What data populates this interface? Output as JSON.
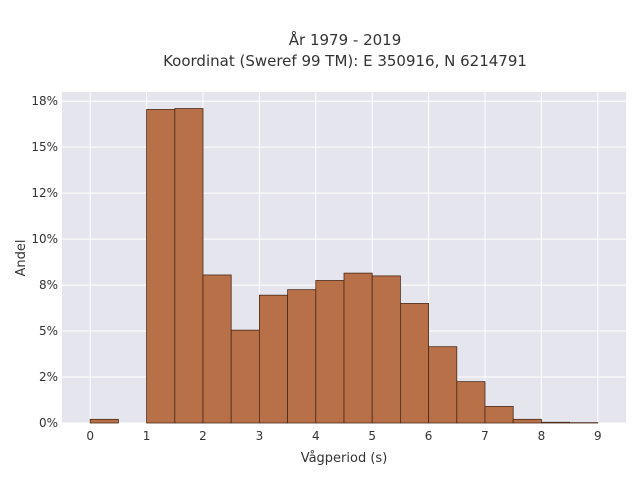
{
  "chart_data": {
    "type": "bar",
    "subtype": "histogram",
    "title_line1": "År 1979 - 2019",
    "title_line2": "Koordinat (Sweref 99 TM): E 350916, N 6214791",
    "xlabel": "Vågperiod (s)",
    "ylabel": "Andel",
    "xlim": [
      -0.5,
      9.5
    ],
    "ylim": [
      0,
      0.18
    ],
    "x_ticks": [
      0,
      1,
      2,
      3,
      4,
      5,
      6,
      7,
      8,
      9
    ],
    "x_tick_labels": [
      "0",
      "1",
      "2",
      "3",
      "4",
      "5",
      "6",
      "7",
      "8",
      "9"
    ],
    "y_ticks": [
      0,
      0.025,
      0.05,
      0.075,
      0.1,
      0.125,
      0.15,
      0.175
    ],
    "y_tick_labels": [
      "0%",
      "2%",
      "5%",
      "8%",
      "10%",
      "12%",
      "15%",
      "18%"
    ],
    "bin_width": 0.5,
    "bins": [
      {
        "x0": 0.0,
        "value": 0.002
      },
      {
        "x0": 0.5,
        "value": 0.0
      },
      {
        "x0": 1.0,
        "value": 0.1705
      },
      {
        "x0": 1.5,
        "value": 0.171
      },
      {
        "x0": 2.0,
        "value": 0.0805
      },
      {
        "x0": 2.5,
        "value": 0.0505
      },
      {
        "x0": 3.0,
        "value": 0.0695
      },
      {
        "x0": 3.5,
        "value": 0.0725
      },
      {
        "x0": 4.0,
        "value": 0.0775
      },
      {
        "x0": 4.5,
        "value": 0.0815
      },
      {
        "x0": 5.0,
        "value": 0.08
      },
      {
        "x0": 5.5,
        "value": 0.065
      },
      {
        "x0": 6.0,
        "value": 0.0415
      },
      {
        "x0": 6.5,
        "value": 0.0225
      },
      {
        "x0": 7.0,
        "value": 0.009
      },
      {
        "x0": 7.5,
        "value": 0.002
      },
      {
        "x0": 8.0,
        "value": 0.0004
      },
      {
        "x0": 8.5,
        "value": 0.0002
      }
    ],
    "grid": true,
    "colors": {
      "bar_fill": "#b87048",
      "bar_stroke": "#4a2a18",
      "plot_bg": "#e5e5ee",
      "grid": "#ffffff"
    }
  }
}
